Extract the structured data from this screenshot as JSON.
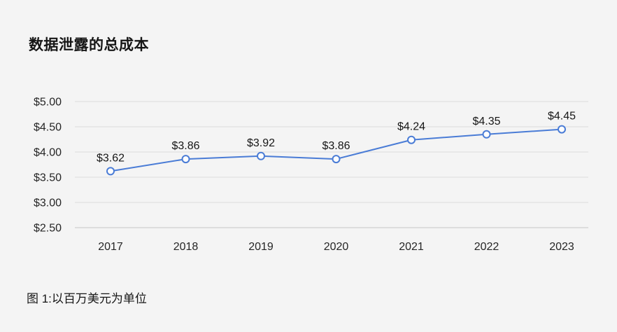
{
  "page": {
    "background_color": "#f4f4f4"
  },
  "header": {
    "title": "数据泄露的总成本"
  },
  "caption": {
    "text": "图 1:以百万美元为单位"
  },
  "chart_data": {
    "type": "line",
    "title": "数据泄露的总成本",
    "xlabel": "",
    "ylabel": "",
    "categories": [
      "2017",
      "2018",
      "2019",
      "2020",
      "2021",
      "2022",
      "2023"
    ],
    "series": [
      {
        "name": "数据泄露的总成本",
        "values": [
          3.62,
          3.86,
          3.92,
          3.86,
          4.24,
          4.35,
          4.45
        ],
        "data_labels": [
          "$3.62",
          "$3.86",
          "$3.92",
          "$3.86",
          "$4.24",
          "$4.35",
          "$4.45"
        ]
      }
    ],
    "y_ticks": [
      {
        "value": 5.0,
        "label": "$5.00"
      },
      {
        "value": 4.5,
        "label": "$4.50"
      },
      {
        "value": 4.0,
        "label": "$4.00"
      },
      {
        "value": 3.5,
        "label": "$3.50"
      },
      {
        "value": 3.0,
        "label": "$3.00"
      },
      {
        "value": 2.5,
        "label": "$2.50"
      }
    ],
    "ylim": [
      2.5,
      5.0
    ],
    "grid": "horizontal",
    "legend_position": "none",
    "colors": {
      "line": "#4a7cd6",
      "marker_fill": "#fdfdfd",
      "marker_stroke": "#4a7cd6",
      "grid_line": "#dcdcdc",
      "axis_line": "#c6c6c6",
      "text": "#262626"
    }
  }
}
